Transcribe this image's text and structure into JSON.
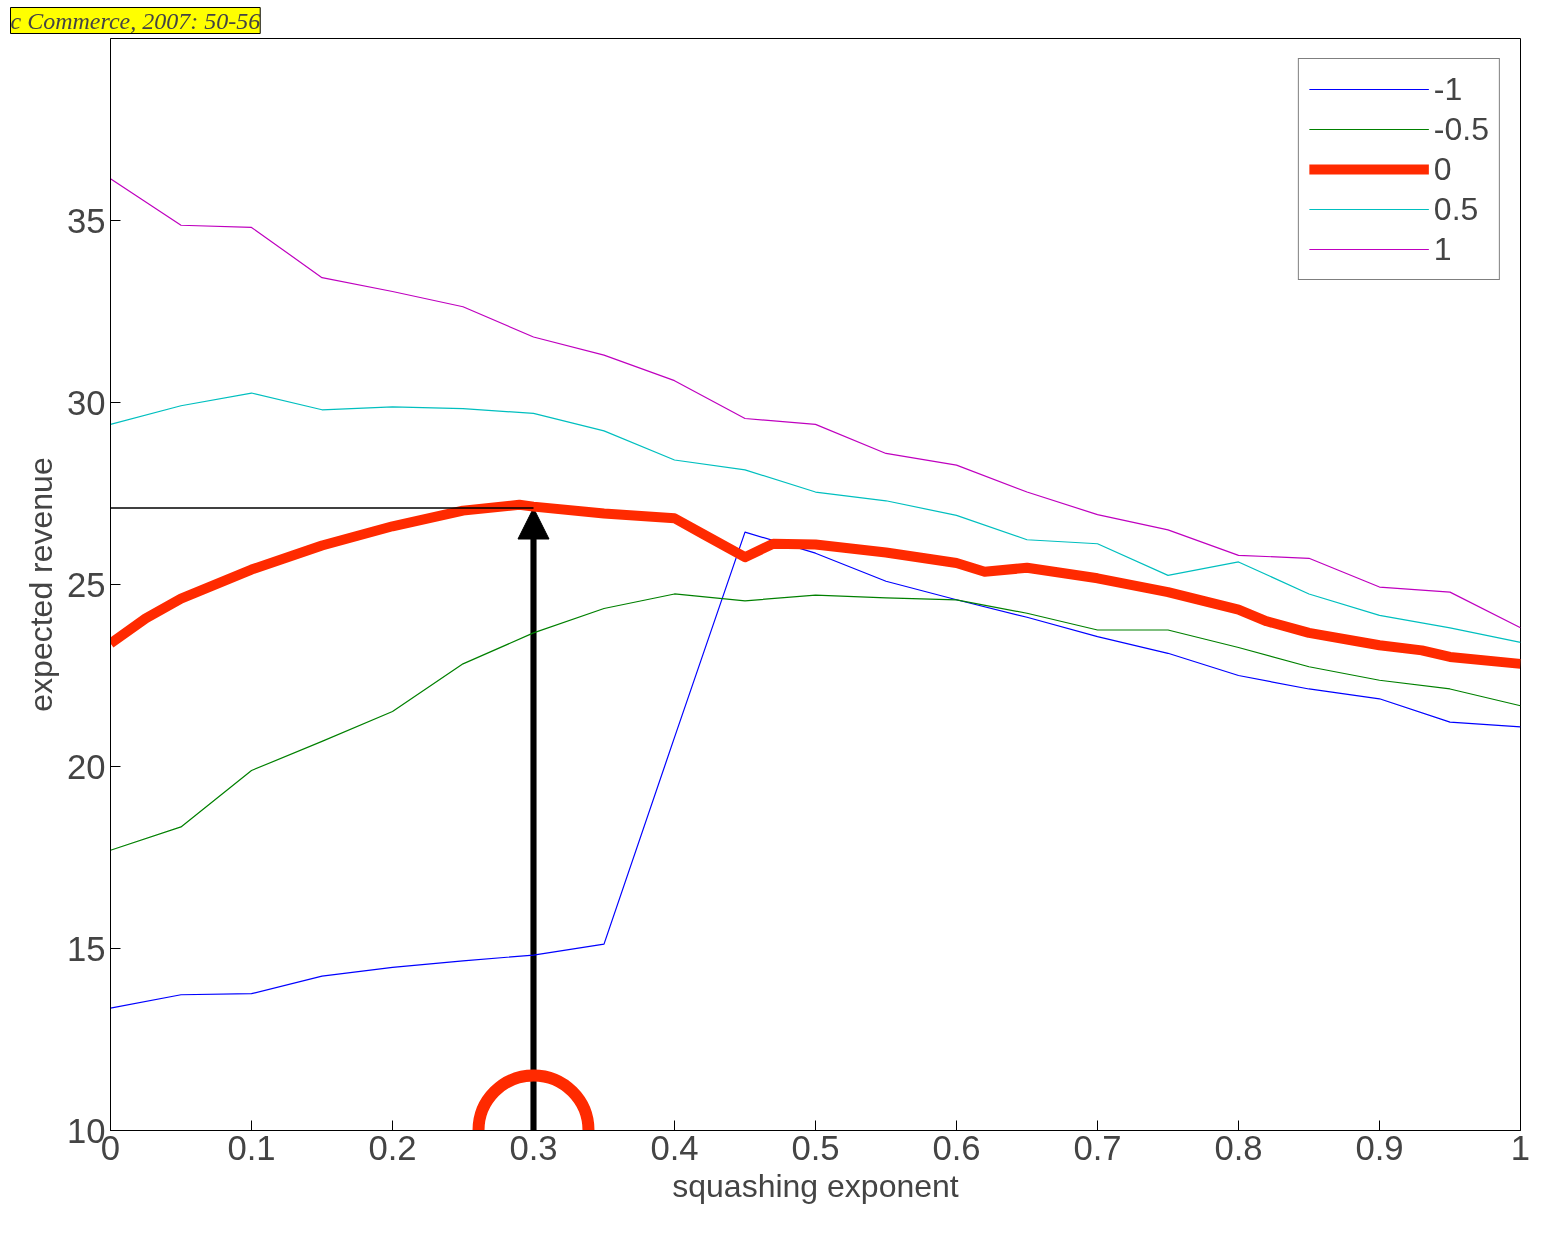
{
  "chart_data": {
    "type": "line",
    "xlabel": "squashing exponent",
    "ylabel": "expected revenue",
    "annotations": [
      "c Commerce, 2007: 50-56"
    ],
    "xlim": [
      0,
      1
    ],
    "ylim": [
      10,
      40
    ],
    "xticks": [
      0,
      0.1,
      0.2,
      0.3,
      0.4,
      0.5,
      0.6,
      0.7,
      0.8,
      0.9,
      1
    ],
    "yticks": [
      10,
      15,
      20,
      25,
      30,
      35
    ],
    "grid": false,
    "legend": "top right",
    "marker": "none",
    "line_style": "solid",
    "ref_lines": [
      {
        "axis": "y",
        "value": 27.1,
        "color": "#000000"
      },
      {
        "axis": "x",
        "value": 0.3,
        "color": "#000000"
      }
    ],
    "series": [
      {
        "name": "-1",
        "color": "#0000ff",
        "x": [
          0,
          0.05,
          0.1,
          0.15,
          0.2,
          0.25,
          0.3,
          0.35,
          0.4,
          0.45,
          0.5,
          0.55,
          0.6,
          0.65,
          0.7,
          0.75,
          0.8,
          0.85,
          0.9,
          0.95,
          1
        ],
        "values": [
          13.36,
          13.73,
          13.76,
          14.24,
          14.48,
          14.66,
          14.82,
          15.12,
          20.8,
          26.44,
          25.86,
          25.09,
          24.58,
          24.1,
          23.57,
          23.11,
          22.5,
          22.13,
          21.86,
          21.22,
          21.09
        ]
      },
      {
        "name": "-0.5",
        "color": "#008000",
        "x": [
          0,
          0.05,
          0.1,
          0.15,
          0.2,
          0.25,
          0.3,
          0.35,
          0.4,
          0.45,
          0.5,
          0.55,
          0.6,
          0.65,
          0.7,
          0.75,
          0.8,
          0.85,
          0.9,
          0.95,
          1
        ],
        "values": [
          17.7,
          18.34,
          19.89,
          20.69,
          21.51,
          22.82,
          23.67,
          24.34,
          24.74,
          24.55,
          24.71,
          24.63,
          24.58,
          24.21,
          23.75,
          23.75,
          23.27,
          22.74,
          22.37,
          22.13,
          21.67
        ]
      },
      {
        "name": "0",
        "color": "#ff2a00",
        "x": [
          0,
          0.025,
          0.05,
          0.1,
          0.15,
          0.2,
          0.25,
          0.29,
          0.3,
          0.35,
          0.4,
          0.42,
          0.45,
          0.47,
          0.5,
          0.55,
          0.6,
          0.62,
          0.65,
          0.7,
          0.75,
          0.8,
          0.82,
          0.85,
          0.9,
          0.93,
          0.95,
          1
        ],
        "values": [
          23.38,
          24.07,
          24.61,
          25.41,
          26.07,
          26.6,
          27.03,
          27.19,
          27.14,
          26.95,
          26.82,
          26.39,
          25.75,
          26.12,
          26.1,
          25.88,
          25.59,
          25.35,
          25.46,
          25.17,
          24.79,
          24.31,
          23.99,
          23.67,
          23.33,
          23.19,
          23.01,
          22.82
        ]
      },
      {
        "name": "0.5",
        "color": "#00bfbf",
        "x": [
          0,
          0.05,
          0.1,
          0.15,
          0.2,
          0.25,
          0.3,
          0.35,
          0.4,
          0.45,
          0.5,
          0.55,
          0.6,
          0.65,
          0.7,
          0.75,
          0.8,
          0.85,
          0.9,
          0.95,
          1
        ],
        "values": [
          29.4,
          29.91,
          30.26,
          29.8,
          29.88,
          29.83,
          29.7,
          29.22,
          28.42,
          28.15,
          27.54,
          27.3,
          26.9,
          26.23,
          26.12,
          25.25,
          25.62,
          24.74,
          24.15,
          23.81,
          23.41
        ]
      },
      {
        "name": "1",
        "color": "#bf00bf",
        "x": [
          0,
          0.05,
          0.1,
          0.15,
          0.2,
          0.25,
          0.3,
          0.35,
          0.4,
          0.45,
          0.5,
          0.55,
          0.6,
          0.65,
          0.7,
          0.75,
          0.8,
          0.85,
          0.9,
          0.95,
          1
        ],
        "values": [
          36.15,
          34.87,
          34.81,
          33.43,
          33.05,
          32.63,
          31.8,
          31.3,
          30.6,
          29.56,
          29.4,
          28.6,
          28.28,
          27.54,
          26.92,
          26.5,
          25.8,
          25.72,
          24.93,
          24.79,
          23.81
        ]
      }
    ]
  }
}
